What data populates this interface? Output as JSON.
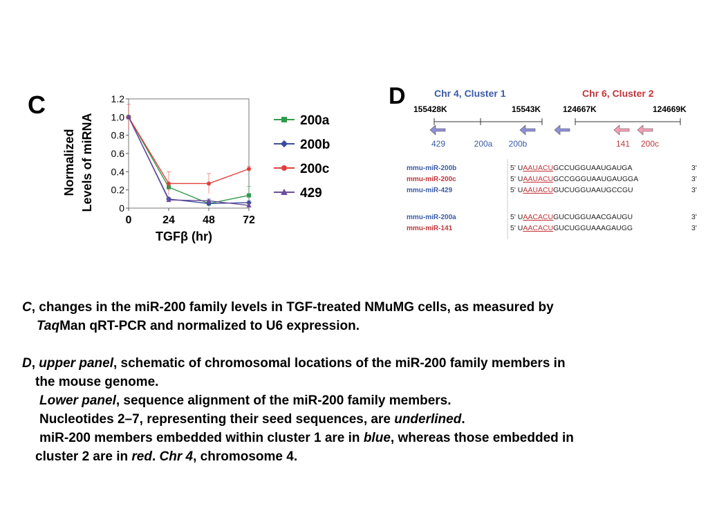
{
  "panel_c": {
    "letter": "C",
    "ylabel_line1": "Normalized",
    "ylabel_line2": "Levels of miRNA",
    "xlabel": "TGFβ (hr)",
    "legend": [
      {
        "label": "200a",
        "color": "#2e9a4a",
        "marker": "square"
      },
      {
        "label": "200b",
        "color": "#3b4c9e",
        "marker": "diamond"
      },
      {
        "label": "200c",
        "color": "#e0403a",
        "marker": "circle"
      },
      {
        "label": "429",
        "color": "#6a4c9c",
        "marker": "triangle"
      }
    ]
  },
  "chart_data": {
    "type": "line",
    "x": [
      0,
      24,
      48,
      72
    ],
    "xticks": [
      "0",
      "24",
      "48",
      "72"
    ],
    "yticks": [
      "0",
      "0.2",
      "0.4",
      "0.6",
      "0.8",
      "1.0",
      "1.2"
    ],
    "ylim": [
      0,
      1.2
    ],
    "xlim": [
      0,
      72
    ],
    "xlabel": "TGFβ (hr)",
    "ylabel": "Normalized Levels of miRNA",
    "series": [
      {
        "name": "200a",
        "color": "#2e9a4a",
        "marker": "square",
        "values": [
          1.0,
          0.23,
          0.05,
          0.14
        ],
        "err": [
          0,
          0.04,
          0.04,
          0.1
        ]
      },
      {
        "name": "200b",
        "color": "#3b4c9e",
        "marker": "diamond",
        "values": [
          1.0,
          0.1,
          0.05,
          0.06
        ],
        "err": [
          0,
          0.02,
          0.02,
          0.02
        ]
      },
      {
        "name": "200c",
        "color": "#e0403a",
        "marker": "circle",
        "values": [
          1.0,
          0.27,
          0.27,
          0.43
        ],
        "err": [
          0.14,
          0.13,
          0.11,
          0.03
        ]
      },
      {
        "name": "429",
        "color": "#6a4c9c",
        "marker": "triangle",
        "values": [
          1.0,
          0.09,
          0.08,
          0.03
        ],
        "err": [
          0,
          0.02,
          0.02,
          0.02
        ]
      }
    ]
  },
  "panel_d": {
    "letter": "D",
    "cluster1_title": "Chr 4, Cluster 1",
    "cluster2_title": "Chr 6, Cluster 2",
    "cluster1_start": "155428K",
    "cluster1_end": "15543K",
    "cluster2_start": "124667K",
    "cluster2_end": "124669K",
    "genes": [
      {
        "label": "429",
        "color": "blue"
      },
      {
        "label": "200a",
        "color": "blue"
      },
      {
        "label": "200b",
        "color": "blue"
      },
      {
        "label": "141",
        "color": "red"
      },
      {
        "label": "200c",
        "color": "red"
      }
    ],
    "alignment": [
      {
        "name": "mmu-miR-200b",
        "name_color": "blue",
        "prime5": "5'",
        "first": "U",
        "seed": "AAUACU",
        "rest": "GCCUGGUAAUGAUGA",
        "prime3": "3'"
      },
      {
        "name": "mmu-miR-200c",
        "name_color": "red",
        "prime5": "5'",
        "first": "U",
        "seed": "AAUACU",
        "rest": "GCCGGGUAAUGAUGGA",
        "prime3": "3'"
      },
      {
        "name": "mmu-miR-429",
        "name_color": "blue",
        "prime5": "5'",
        "first": "U",
        "seed": "AAUACU",
        "rest": "GUCUGGUAAUGCCGU",
        "prime3": "3'"
      },
      {
        "name": "mmu-miR-200a",
        "name_color": "blue",
        "prime5": "5'",
        "first": "U",
        "seed": "AACACU",
        "rest": "GUCUGGUAACGAUGU",
        "prime3": "3'"
      },
      {
        "name": "mmu-miR-141",
        "name_color": "red",
        "prime5": "5'",
        "first": "U",
        "seed": "AACACU",
        "rest": "GUCUGGUAAAGAUGG",
        "prime3": "3'"
      }
    ],
    "colors": {
      "blue": "#3a5aa8",
      "red": "#c0353a",
      "seed": "#c0353a",
      "arrow_blue": "#8f8fd8",
      "arrow_red": "#f3a0b4"
    }
  },
  "caption": {
    "c_letter": "C",
    "c_text1": ", changes in the miR-200 family levels in TGF-treated NMuMG cells, as measured by",
    "c_taq": "Taq",
    "c_text2": "Man qRT-PCR and normalized to U6 expression.",
    "d_letter": "D",
    "d_sep": ", ",
    "d_upper": "upper panel",
    "d_text1": ", schematic of chromosomal locations of the miR-200 family members in",
    "d_text2": "the mouse genome.",
    "lower_panel": "Lower panel",
    "lower_text": ", sequence alignment of the miR-200 family members.",
    "nuc_text": "Nucleotides 2–7, representing their seed sequences, are ",
    "underlined": "underlined",
    "period": ".",
    "embed_text1": "miR-200 members embedded within cluster 1 are in ",
    "blue": "blue",
    "embed_text2": ", whereas those embedded in",
    "cl2_text": "cluster 2 are in ",
    "red": "red",
    "dot_space": ". ",
    "chr4": "Chr 4",
    "chr4_text": ", chromosome 4."
  }
}
